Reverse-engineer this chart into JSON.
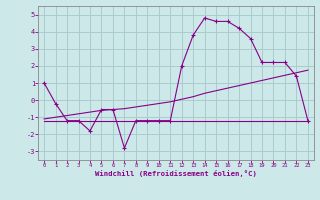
{
  "xlabel": "Windchill (Refroidissement éolien,°C)",
  "background_color": "#cce8e8",
  "grid_color": "#aacccc",
  "line_color": "#880088",
  "x_values": [
    0,
    1,
    2,
    3,
    4,
    5,
    6,
    7,
    8,
    9,
    10,
    11,
    12,
    13,
    14,
    15,
    16,
    17,
    18,
    19,
    20,
    21,
    22,
    23
  ],
  "windchill_values": [
    1.0,
    -0.2,
    -1.2,
    -1.2,
    -1.8,
    -0.55,
    -0.55,
    -2.8,
    -1.2,
    -1.2,
    -1.2,
    -1.2,
    2.0,
    3.8,
    4.8,
    4.6,
    4.6,
    4.2,
    3.6,
    2.2,
    2.2,
    2.2,
    1.4,
    -1.2
  ],
  "temp_values": [
    -1.1,
    -1.0,
    -0.9,
    -0.8,
    -0.7,
    -0.6,
    -0.55,
    -0.5,
    -0.4,
    -0.3,
    -0.2,
    -0.1,
    0.05,
    0.2,
    0.4,
    0.55,
    0.7,
    0.85,
    1.0,
    1.15,
    1.3,
    1.45,
    1.6,
    1.75
  ],
  "regression_values": [
    -1.2,
    -1.2,
    -1.2,
    -1.2,
    -1.2,
    -1.2,
    -1.2,
    -1.2,
    -1.2,
    -1.2,
    -1.2,
    -1.2,
    -1.2,
    -1.2,
    -1.2,
    -1.2,
    -1.2,
    -1.2,
    -1.2,
    -1.2,
    -1.2,
    -1.2,
    -1.2,
    -1.2
  ],
  "ylim": [
    -3.5,
    5.5
  ],
  "xlim": [
    -0.5,
    23.5
  ],
  "yticks": [
    -3,
    -2,
    -1,
    0,
    1,
    2,
    3,
    4,
    5
  ],
  "xticks": [
    0,
    1,
    2,
    3,
    4,
    5,
    6,
    7,
    8,
    9,
    10,
    11,
    12,
    13,
    14,
    15,
    16,
    17,
    18,
    19,
    20,
    21,
    22,
    23
  ]
}
